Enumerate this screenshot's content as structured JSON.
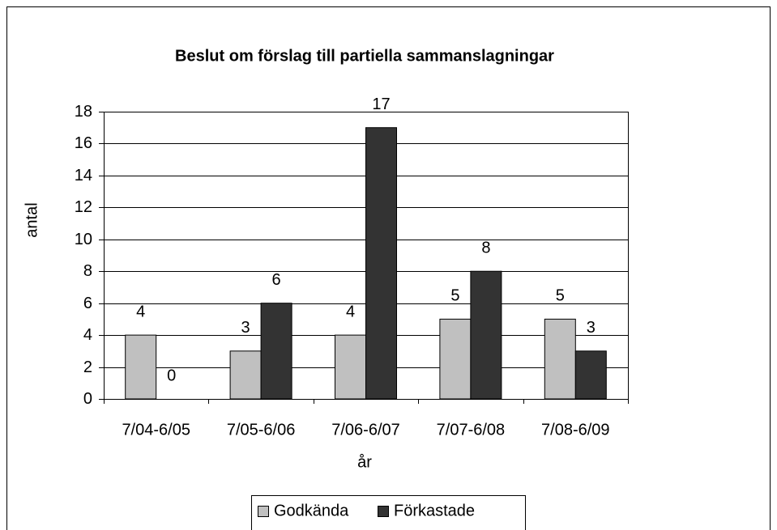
{
  "chart_data": {
    "type": "bar",
    "title": "Beslut om förslag till partiella sammanslagningar",
    "xlabel": "år",
    "ylabel": "antal",
    "categories": [
      "7/04-6/05",
      "7/05-6/06",
      "7/06-6/07",
      "7/07-6/08",
      "7/08-6/09"
    ],
    "series": [
      {
        "name": "Godkända",
        "color": "#c0c0c0",
        "values": [
          4,
          3,
          4,
          5,
          5
        ]
      },
      {
        "name": "Förkastade",
        "color": "#333333",
        "values": [
          0,
          6,
          17,
          8,
          3
        ]
      }
    ],
    "ylim": [
      0,
      18
    ],
    "yticks": [
      0,
      2,
      4,
      6,
      8,
      10,
      12,
      14,
      16,
      18
    ],
    "grid": true,
    "legend": "bottom"
  }
}
